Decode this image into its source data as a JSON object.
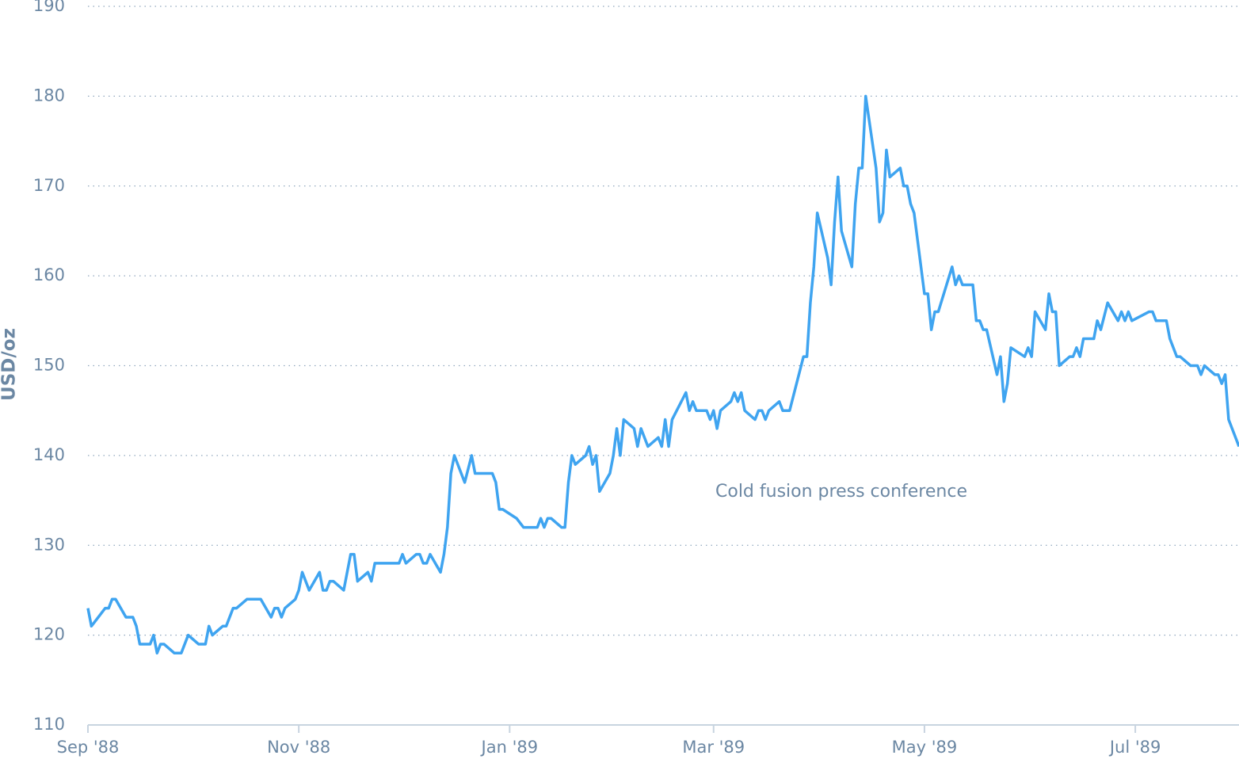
{
  "chart_data": {
    "type": "line",
    "y_label": "USD/oz",
    "annotation": "Cold fusion press conference",
    "color": "#3fa4f0",
    "grid": true,
    "ylim": [
      110,
      190
    ],
    "yticks": [
      110,
      120,
      130,
      140,
      150,
      160,
      170,
      180,
      190
    ],
    "xlim": [
      "1988-09-01",
      "1989-07-31"
    ],
    "xticks": [
      {
        "value": "1988-09-01",
        "label": "Sep '88"
      },
      {
        "value": "1988-11-01",
        "label": "Nov '88"
      },
      {
        "value": "1989-01-01",
        "label": "Jan '89"
      },
      {
        "value": "1989-03-01",
        "label": "Mar '89"
      },
      {
        "value": "1989-05-01",
        "label": "May '89"
      },
      {
        "value": "1989-07-01",
        "label": "Jul '89"
      }
    ],
    "x": [
      "1988-09-01",
      "1988-09-02",
      "1988-09-06",
      "1988-09-07",
      "1988-09-08",
      "1988-09-09",
      "1988-09-12",
      "1988-09-14",
      "1988-09-15",
      "1988-09-16",
      "1988-09-19",
      "1988-09-20",
      "1988-09-21",
      "1988-09-22",
      "1988-09-23",
      "1988-09-26",
      "1988-09-28",
      "1988-09-30",
      "1988-10-03",
      "1988-10-05",
      "1988-10-06",
      "1988-10-07",
      "1988-10-10",
      "1988-10-11",
      "1988-10-13",
      "1988-10-14",
      "1988-10-17",
      "1988-10-21",
      "1988-10-24",
      "1988-10-25",
      "1988-10-26",
      "1988-10-27",
      "1988-10-28",
      "1988-10-31",
      "1988-11-01",
      "1988-11-02",
      "1988-11-04",
      "1988-11-07",
      "1988-11-08",
      "1988-11-09",
      "1988-11-10",
      "1988-11-11",
      "1988-11-14",
      "1988-11-16",
      "1988-11-17",
      "1988-11-18",
      "1988-11-21",
      "1988-11-22",
      "1988-11-23",
      "1988-11-30",
      "1988-12-01",
      "1988-12-02",
      "1988-12-05",
      "1988-12-06",
      "1988-12-07",
      "1988-12-08",
      "1988-12-09",
      "1988-12-12",
      "1988-12-13",
      "1988-12-14",
      "1988-12-15",
      "1988-12-16",
      "1988-12-19",
      "1988-12-21",
      "1988-12-22",
      "1988-12-27",
      "1988-12-28",
      "1988-12-29",
      "1988-12-30",
      "1989-01-03",
      "1989-01-05",
      "1989-01-09",
      "1989-01-10",
      "1989-01-11",
      "1989-01-12",
      "1989-01-13",
      "1989-01-16",
      "1989-01-17",
      "1989-01-18",
      "1989-01-19",
      "1989-01-20",
      "1989-01-23",
      "1989-01-24",
      "1989-01-25",
      "1989-01-26",
      "1989-01-27",
      "1989-01-30",
      "1989-01-31",
      "1989-02-01",
      "1989-02-02",
      "1989-02-03",
      "1989-02-06",
      "1989-02-07",
      "1989-02-08",
      "1989-02-10",
      "1989-02-13",
      "1989-02-14",
      "1989-02-15",
      "1989-02-16",
      "1989-02-17",
      "1989-02-21",
      "1989-02-22",
      "1989-02-23",
      "1989-02-24",
      "1989-02-27",
      "1989-02-28",
      "1989-03-01",
      "1989-03-02",
      "1989-03-03",
      "1989-03-06",
      "1989-03-07",
      "1989-03-08",
      "1989-03-09",
      "1989-03-10",
      "1989-03-13",
      "1989-03-14",
      "1989-03-15",
      "1989-03-16",
      "1989-03-17",
      "1989-03-20",
      "1989-03-21",
      "1989-03-23",
      "1989-03-27",
      "1989-03-28",
      "1989-03-29",
      "1989-03-30",
      "1989-03-31",
      "1989-04-03",
      "1989-04-04",
      "1989-04-05",
      "1989-04-06",
      "1989-04-07",
      "1989-04-10",
      "1989-04-11",
      "1989-04-12",
      "1989-04-13",
      "1989-04-14",
      "1989-04-17",
      "1989-04-18",
      "1989-04-19",
      "1989-04-20",
      "1989-04-21",
      "1989-04-24",
      "1989-04-25",
      "1989-04-26",
      "1989-04-27",
      "1989-04-28",
      "1989-05-01",
      "1989-05-02",
      "1989-05-03",
      "1989-05-04",
      "1989-05-05",
      "1989-05-09",
      "1989-05-10",
      "1989-05-11",
      "1989-05-12",
      "1989-05-15",
      "1989-05-16",
      "1989-05-17",
      "1989-05-18",
      "1989-05-19",
      "1989-05-22",
      "1989-05-23",
      "1989-05-24",
      "1989-05-25",
      "1989-05-26",
      "1989-05-30",
      "1989-05-31",
      "1989-06-01",
      "1989-06-02",
      "1989-06-05",
      "1989-06-06",
      "1989-06-07",
      "1989-06-08",
      "1989-06-09",
      "1989-06-12",
      "1989-06-13",
      "1989-06-14",
      "1989-06-15",
      "1989-06-16",
      "1989-06-19",
      "1989-06-20",
      "1989-06-21",
      "1989-06-23",
      "1989-06-26",
      "1989-06-27",
      "1989-06-28",
      "1989-06-29",
      "1989-06-30",
      "1989-07-05",
      "1989-07-06",
      "1989-07-07",
      "1989-07-10",
      "1989-07-11",
      "1989-07-13",
      "1989-07-14",
      "1989-07-17",
      "1989-07-19",
      "1989-07-20",
      "1989-07-21",
      "1989-07-24",
      "1989-07-25",
      "1989-07-26",
      "1989-07-27",
      "1989-07-28",
      "1989-07-31"
    ],
    "values": [
      123,
      121,
      123,
      123,
      124,
      124,
      122,
      122,
      121,
      119,
      119,
      120,
      118,
      119,
      119,
      118,
      118,
      120,
      119,
      119,
      121,
      120,
      121,
      121,
      123,
      123,
      124,
      124,
      122,
      123,
      123,
      122,
      123,
      124,
      125,
      127,
      125,
      127,
      125,
      125,
      126,
      126,
      125,
      129,
      129,
      126,
      127,
      126,
      128,
      128,
      129,
      128,
      129,
      129,
      128,
      128,
      129,
      127,
      129,
      132,
      138,
      140,
      137,
      140,
      138,
      138,
      137,
      134,
      134,
      133,
      132,
      132,
      133,
      132,
      133,
      133,
      132,
      132,
      137,
      140,
      139,
      140,
      141,
      139,
      140,
      136,
      138,
      140,
      143,
      140,
      144,
      143,
      141,
      143,
      141,
      142,
      141,
      144,
      141,
      144,
      147,
      145,
      146,
      145,
      145,
      144,
      145,
      143,
      145,
      146,
      147,
      146,
      147,
      145,
      144,
      145,
      145,
      144,
      145,
      146,
      145,
      145,
      151,
      151,
      157,
      161,
      167,
      162,
      159,
      166,
      171,
      165,
      161,
      168,
      172,
      172,
      180,
      172,
      166,
      167,
      174,
      171,
      172,
      170,
      170,
      168,
      167,
      158,
      158,
      154,
      156,
      156,
      161,
      159,
      160,
      159,
      159,
      155,
      155,
      154,
      154,
      149,
      151,
      146,
      148,
      152,
      151,
      152,
      151,
      156,
      154,
      158,
      156,
      156,
      150,
      151,
      151,
      152,
      151,
      153,
      153,
      155,
      154,
      157,
      155,
      156,
      155,
      156,
      155,
      156,
      156,
      155,
      155,
      153,
      151,
      151,
      150,
      150,
      149,
      150,
      149,
      149,
      148,
      149,
      144,
      141
    ]
  }
}
